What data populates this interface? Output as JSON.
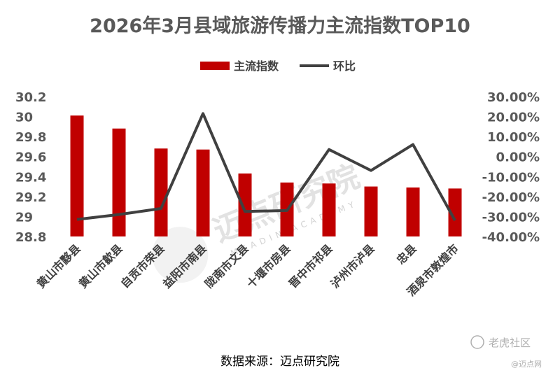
{
  "chart_data": {
    "type": "bar",
    "title": "2026年3月县域旅游传播力主流指数TOP10",
    "categories": [
      "黄山市黟县",
      "黄山市歙县",
      "自贡市荣县",
      "益阳市南县",
      "陇南市文县",
      "十堰市房县",
      "晋中市祁县",
      "泸州市泸县",
      "忠县",
      "酒泉市敦煌市"
    ],
    "series": [
      {
        "name": "主流指数",
        "type": "bar",
        "axis": "left",
        "color": "#c00000",
        "values": [
          30.01,
          29.88,
          29.68,
          29.67,
          29.43,
          29.34,
          29.33,
          29.3,
          29.29,
          29.28
        ]
      },
      {
        "name": "环比",
        "type": "line",
        "axis": "right",
        "color": "#404040",
        "values": [
          -31.5,
          -29.0,
          -26.0,
          21.5,
          -27.5,
          -27.0,
          3.5,
          -7.0,
          6.0,
          -32.0
        ]
      }
    ],
    "left_axis": {
      "ylim": [
        28.8,
        30.2
      ],
      "ticks": [
        "30.2",
        "30",
        "29.8",
        "29.6",
        "29.4",
        "29.2",
        "29",
        "28.8"
      ]
    },
    "right_axis": {
      "ylim": [
        -40,
        30
      ],
      "ticks": [
        "30.00%",
        "20.00%",
        "10.00%",
        "0.00%",
        "-10.00%",
        "-20.00%",
        "-30.00%",
        "-40.00%"
      ]
    },
    "legend": {
      "placement": "top-center"
    },
    "grid": false
  },
  "source_text": "数据来源：迈点研究院",
  "watermark": {
    "main": "迈点研究院",
    "sub": "MEADIN ACADEMY"
  },
  "corner_mark": {
    "main": "老虎社区",
    "sub": "@迈点网"
  }
}
